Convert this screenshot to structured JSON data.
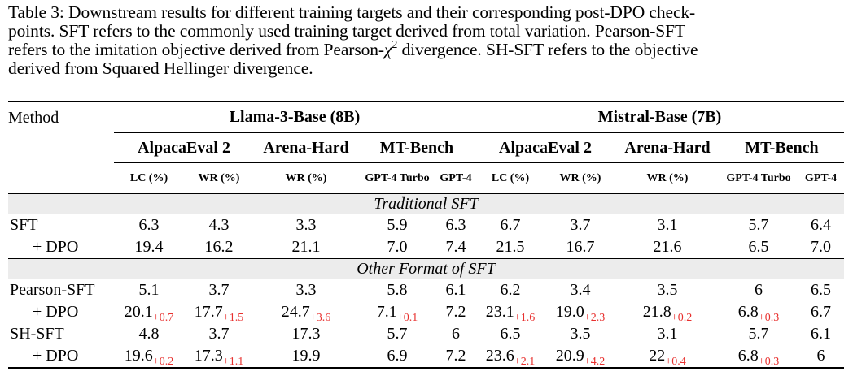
{
  "caption": {
    "label": "Table 3:",
    "text1": "Downstream results for different training targets and their corresponding post-DPO check-",
    "text2": "points. SFT refers to the commonly used training target derived from total variation. Pearson-SFT",
    "text3a": "refers to the imitation objective derived from Pearson-",
    "chi": "χ",
    "sup": "2",
    "text3b": " divergence. SH-SFT refers to the objective",
    "text4": "derived from Squared Hellinger divergence."
  },
  "header": {
    "method": "Method",
    "groups": [
      "Llama-3-Base (8B)",
      "Mistral-Base (7B)"
    ],
    "benchmarks": [
      "AlpacaEval 2",
      "Arena-Hard",
      "MT-Bench",
      "AlpacaEval 2",
      "Arena-Hard",
      "MT-Bench"
    ],
    "metrics": [
      "LC (%)",
      "WR (%)",
      "WR (%)",
      "GPT-4 Turbo",
      "GPT-4",
      "LC (%)",
      "WR (%)",
      "WR (%)",
      "GPT-4 Turbo",
      "GPT-4"
    ]
  },
  "sections": [
    "Traditional SFT",
    "Other Format of SFT"
  ],
  "rows": [
    {
      "method": "SFT",
      "cells": [
        [
          "6.3",
          ""
        ],
        [
          "4.3",
          ""
        ],
        [
          "3.3",
          ""
        ],
        [
          "5.9",
          ""
        ],
        [
          "6.3",
          ""
        ],
        [
          "6.7",
          ""
        ],
        [
          "3.7",
          ""
        ],
        [
          "3.1",
          ""
        ],
        [
          "5.7",
          ""
        ],
        [
          "6.4",
          ""
        ]
      ]
    },
    {
      "method": "+ DPO",
      "cells": [
        [
          "19.4",
          ""
        ],
        [
          "16.2",
          ""
        ],
        [
          "21.1",
          ""
        ],
        [
          "7.0",
          ""
        ],
        [
          "7.4",
          ""
        ],
        [
          "21.5",
          ""
        ],
        [
          "16.7",
          ""
        ],
        [
          "21.6",
          ""
        ],
        [
          "6.5",
          ""
        ],
        [
          "7.0",
          ""
        ]
      ]
    },
    {
      "method": "Pearson-SFT",
      "cells": [
        [
          "5.1",
          ""
        ],
        [
          "3.7",
          ""
        ],
        [
          "3.3",
          ""
        ],
        [
          "5.8",
          ""
        ],
        [
          "6.1",
          ""
        ],
        [
          "6.2",
          ""
        ],
        [
          "3.4",
          ""
        ],
        [
          "3.5",
          ""
        ],
        [
          "6",
          ""
        ],
        [
          "6.5",
          ""
        ]
      ]
    },
    {
      "method": "+ DPO",
      "cells": [
        [
          "20.1",
          "+0.7"
        ],
        [
          "17.7",
          "+1.5"
        ],
        [
          "24.7",
          "+3.6"
        ],
        [
          "7.1",
          "+0.1"
        ],
        [
          "7.2",
          ""
        ],
        [
          "23.1",
          "+1.6"
        ],
        [
          "19.0",
          "+2.3"
        ],
        [
          "21.8",
          "+0.2"
        ],
        [
          "6.8",
          "+0.3"
        ],
        [
          "6.7",
          ""
        ]
      ]
    },
    {
      "method": "SH-SFT",
      "cells": [
        [
          "4.8",
          ""
        ],
        [
          "3.7",
          ""
        ],
        [
          "17.3",
          ""
        ],
        [
          "5.7",
          ""
        ],
        [
          "6",
          ""
        ],
        [
          "6.5",
          ""
        ],
        [
          "3.5",
          ""
        ],
        [
          "3.1",
          ""
        ],
        [
          "5.7",
          ""
        ],
        [
          "6.1",
          ""
        ]
      ]
    },
    {
      "method": "+ DPO",
      "cells": [
        [
          "19.6",
          "+0.2"
        ],
        [
          "17.3",
          "+1.1"
        ],
        [
          "19.9",
          ""
        ],
        [
          "6.9",
          ""
        ],
        [
          "7.2",
          ""
        ],
        [
          "23.6",
          "+2.1"
        ],
        [
          "20.9",
          "+4.2"
        ],
        [
          "22",
          "+0.4"
        ],
        [
          "6.8",
          "+0.3"
        ],
        [
          "6",
          ""
        ]
      ]
    }
  ],
  "colors": {
    "delta": "#e8312f",
    "section_bg": "#ececec"
  }
}
